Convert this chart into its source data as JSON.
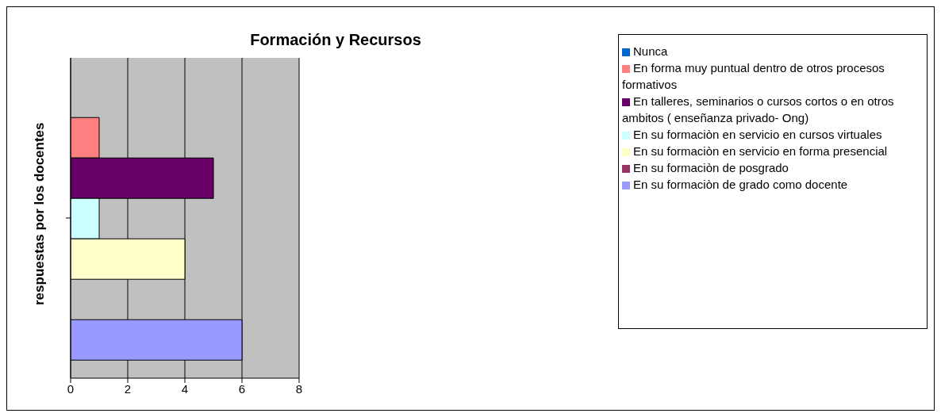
{
  "chart_data": {
    "type": "bar",
    "orientation": "horizontal",
    "title": "Formación y Recursos",
    "ylabel": "respuestas por los docentes",
    "categories": [
      null
    ],
    "series": [
      {
        "name": "Nunca",
        "color": "#0066cc",
        "values": [
          0
        ]
      },
      {
        "name": "En forma muy puntual dentro de otros procesos formativos",
        "color": "#ff8080",
        "values": [
          1
        ]
      },
      {
        "name": "En talleres, seminarios o cursos cortos o en otros ambitos ( enseñanza privado- Ong)",
        "color": "#660066",
        "values": [
          5
        ]
      },
      {
        "name": "En su formaciòn en servicio en cursos virtuales",
        "color": "#ccffff",
        "values": [
          1
        ]
      },
      {
        "name": "En su formaciòn en servicio en forma presencial",
        "color": "#ffffcc",
        "values": [
          4
        ]
      },
      {
        "name": "En su formaciòn  de posgrado",
        "color": "#993366",
        "values": [
          0
        ]
      },
      {
        "name": "En su formaciòn de grado como docente",
        "color": "#9999ff",
        "values": [
          6
        ]
      }
    ],
    "xlim": [
      0,
      8
    ],
    "xticks": [
      0,
      2,
      4,
      6,
      8
    ],
    "grid": "x",
    "legend": "right"
  }
}
